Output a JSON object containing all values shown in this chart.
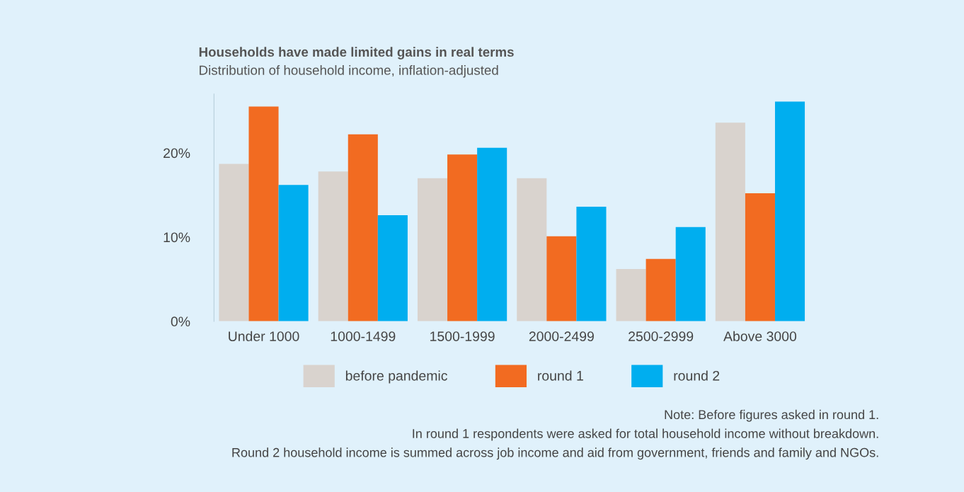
{
  "chart_data": {
    "type": "bar",
    "title": "Households have made limited gains in real terms",
    "subtitle": "Distribution of household income, inflation-adjusted",
    "categories": [
      "Under 1000",
      "1000-1499",
      "1500-1999",
      "2000-2499",
      "2500-2999",
      "Above 3000"
    ],
    "series": [
      {
        "name": "before pandemic",
        "color": "#d9d3ce",
        "values": [
          18.7,
          17.8,
          17.0,
          17.0,
          6.2,
          23.6
        ]
      },
      {
        "name": "round 1",
        "color": "#f26b21",
        "values": [
          25.5,
          22.2,
          19.8,
          10.1,
          7.4,
          15.2
        ]
      },
      {
        "name": "round 2",
        "color": "#00aeef",
        "values": [
          16.2,
          12.6,
          20.6,
          13.6,
          11.2,
          26.1
        ]
      }
    ],
    "ylim": [
      0,
      27
    ],
    "yticks": [
      {
        "value": 0,
        "label": "0%"
      },
      {
        "value": 10,
        "label": "10%"
      },
      {
        "value": 20,
        "label": "20%"
      }
    ],
    "grid": false,
    "legend": "bottom",
    "annotations": [
      "Note: Before figures asked in round 1.",
      "In round 1 respondents were asked for total household income without breakdown.",
      "Round 2 household income is summed across job income and aid from government, friends and family and NGOs."
    ]
  }
}
